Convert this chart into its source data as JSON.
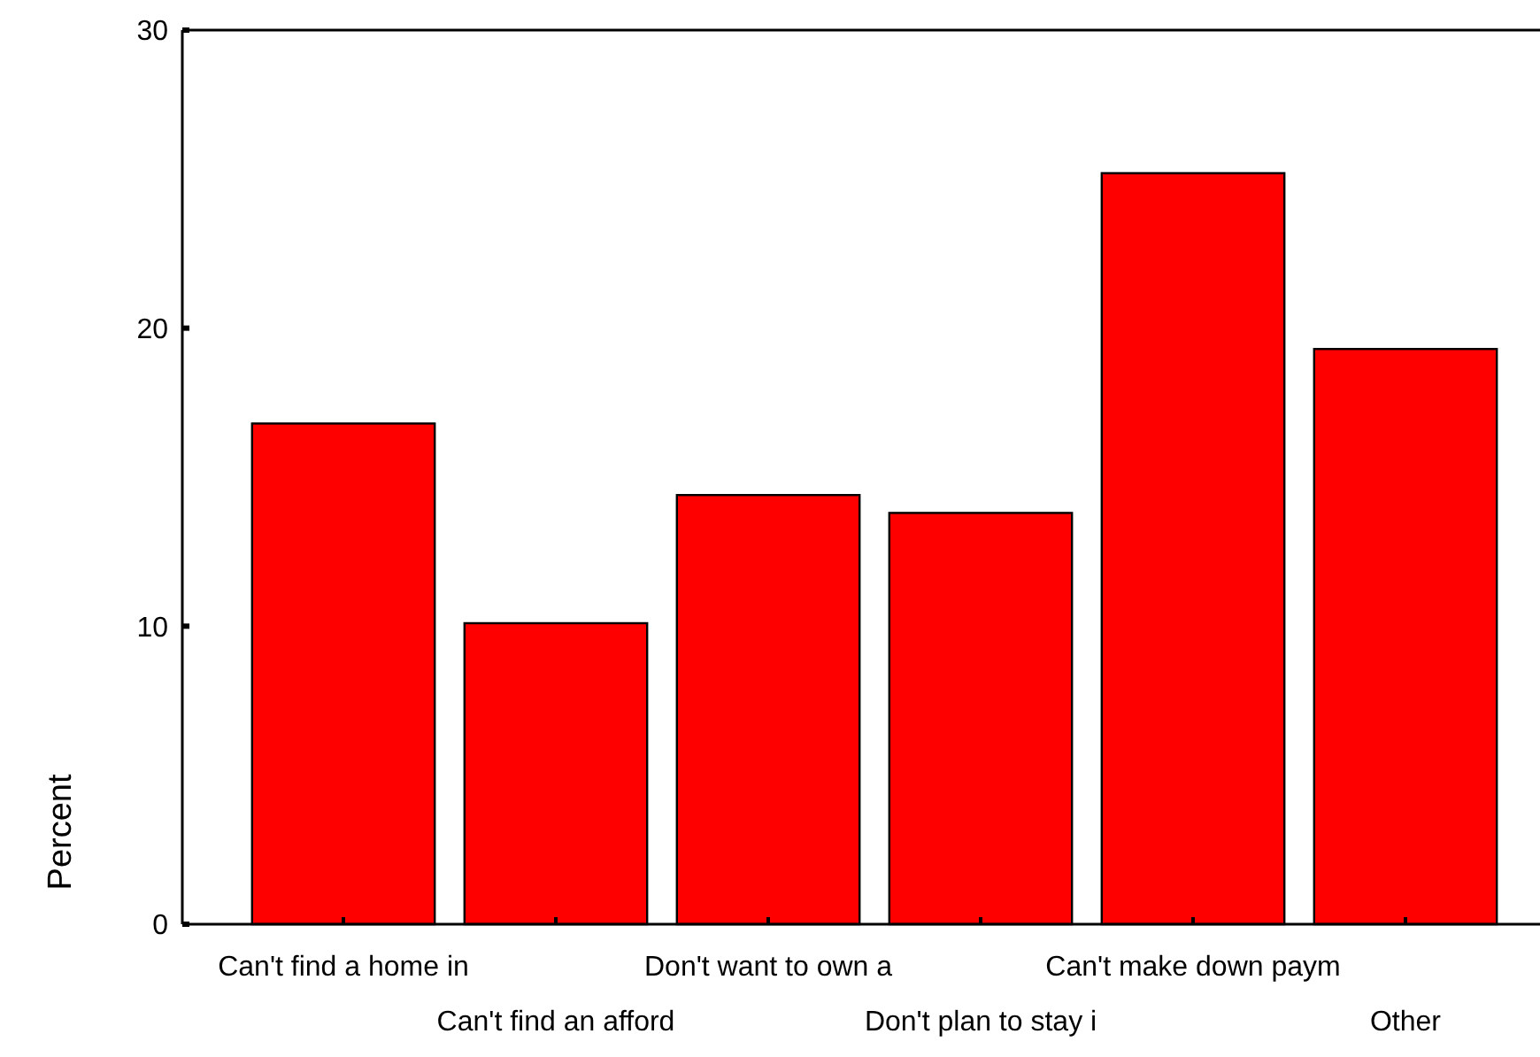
{
  "chart_data": {
    "type": "bar",
    "ylabel": "Percent",
    "categories": [
      "Can't find a home in",
      "Can't find an afford",
      "Don't want to own a",
      "Don't plan to stay i",
      "Can't make down paym",
      "Other"
    ],
    "values": [
      16.8,
      10.1,
      14.4,
      13.8,
      25.2,
      19.3
    ],
    "color": "#ff0000",
    "ylim": [
      0,
      30
    ],
    "yticks": [
      0,
      10,
      20,
      30
    ],
    "grid": false
  }
}
